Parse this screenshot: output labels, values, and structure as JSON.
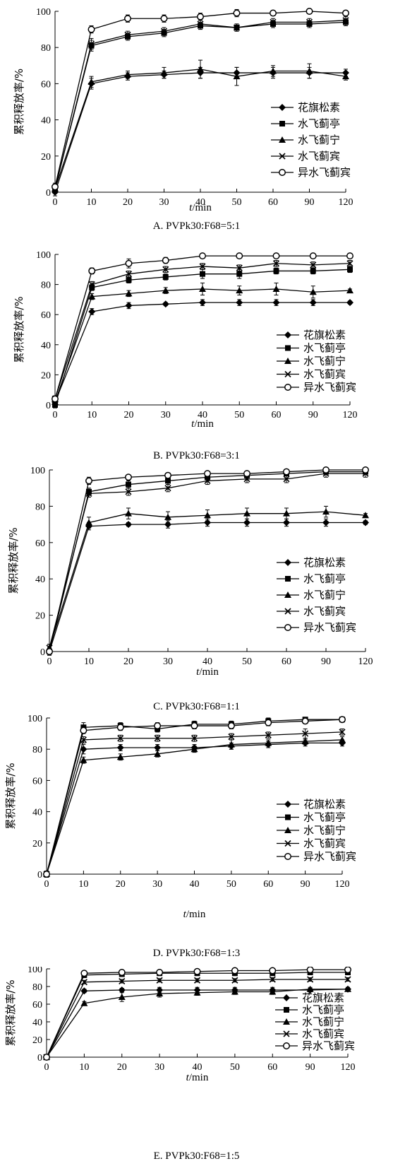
{
  "chart_data": [
    {
      "type": "line",
      "caption": "A. PVPk30:F68=5:1",
      "xlabel_italic": "t",
      "xlabel_unit": "/min",
      "ylabel": "累积释放率/%",
      "categories": [
        "0",
        "10",
        "20",
        "30",
        "40",
        "50",
        "60",
        "90",
        "120"
      ],
      "yticks": [
        0,
        20,
        40,
        60,
        80,
        100
      ],
      "ylim": [
        0,
        100
      ],
      "legend_position": "right",
      "series": [
        {
          "name": "花旗松素",
          "marker": "diamond",
          "values": [
            0,
            60,
            64,
            65,
            66,
            66,
            66,
            66,
            66
          ],
          "err": [
            2,
            3,
            2,
            2,
            3,
            3,
            3,
            3,
            2
          ]
        },
        {
          "name": "水飞蓟亭",
          "marker": "square",
          "values": [
            2,
            81,
            86,
            88,
            92,
            91,
            93,
            93,
            94
          ],
          "err": [
            2,
            3,
            2,
            2,
            2,
            2,
            2,
            2,
            2
          ]
        },
        {
          "name": "水飞蓟宁",
          "marker": "triangle",
          "values": [
            2,
            61,
            65,
            66,
            68,
            64,
            67,
            67,
            64
          ],
          "err": [
            2,
            3,
            2,
            3,
            5,
            5,
            3,
            4,
            2
          ]
        },
        {
          "name": "水飞蓟宾",
          "marker": "x",
          "values": [
            2,
            82,
            87,
            89,
            93,
            91,
            94,
            94,
            95
          ],
          "err": [
            2,
            3,
            2,
            2,
            2,
            2,
            2,
            2,
            2
          ]
        },
        {
          "name": "异水飞蓟宾",
          "marker": "circle",
          "values": [
            3,
            90,
            96,
            96,
            97,
            99,
            99,
            100,
            99
          ],
          "err": [
            2,
            2,
            2,
            2,
            2,
            2,
            1,
            1,
            1
          ]
        }
      ]
    },
    {
      "type": "line",
      "caption": "B. PVPk30:F68=3:1",
      "xlabel_italic": "t",
      "xlabel_unit": "/min",
      "ylabel": "累积释放率/%",
      "categories": [
        "0",
        "10",
        "20",
        "30",
        "40",
        "50",
        "60",
        "90",
        "120"
      ],
      "yticks": [
        0,
        20,
        40,
        60,
        80,
        100
      ],
      "ylim": [
        0,
        100
      ],
      "legend_position": "lower-right",
      "series": [
        {
          "name": "花旗松素",
          "marker": "diamond",
          "values": [
            2,
            62,
            66,
            67,
            68,
            68,
            68,
            68,
            68
          ],
          "err": [
            2,
            2,
            2,
            1,
            2,
            2,
            2,
            2,
            1
          ]
        },
        {
          "name": "水飞蓟亭",
          "marker": "square",
          "values": [
            0,
            78,
            83,
            85,
            87,
            87,
            89,
            89,
            90
          ],
          "err": [
            2,
            2,
            2,
            2,
            3,
            3,
            2,
            2,
            2
          ]
        },
        {
          "name": "水飞蓟宁",
          "marker": "triangle",
          "values": [
            2,
            72,
            74,
            76,
            77,
            76,
            77,
            75,
            76
          ],
          "err": [
            2,
            2,
            2,
            2,
            4,
            3,
            4,
            4,
            1
          ]
        },
        {
          "name": "水飞蓟宾",
          "marker": "x",
          "values": [
            4,
            80,
            87,
            90,
            92,
            91,
            94,
            93,
            94
          ],
          "err": [
            2,
            2,
            2,
            2,
            2,
            2,
            2,
            2,
            2
          ]
        },
        {
          "name": "异水飞蓟宾",
          "marker": "circle",
          "values": [
            4,
            89,
            94,
            96,
            99,
            99,
            99,
            99,
            99
          ],
          "err": [
            2,
            2,
            3,
            2,
            1,
            1,
            1,
            1,
            1
          ]
        }
      ]
    },
    {
      "type": "line",
      "caption": "C. PVPk30:F68=1:1",
      "xlabel_italic": "t",
      "xlabel_unit": "/min",
      "ylabel": "累积释放率/%",
      "categories": [
        "0",
        "10",
        "20",
        "30",
        "40",
        "50",
        "60",
        "90",
        "120"
      ],
      "yticks": [
        0,
        20,
        40,
        60,
        80,
        100
      ],
      "ylim": [
        0,
        100
      ],
      "legend_position": "lower-right",
      "series": [
        {
          "name": "花旗松素",
          "marker": "diamond",
          "values": [
            0,
            69,
            70,
            70,
            71,
            71,
            71,
            71,
            71
          ],
          "err": [
            2,
            2,
            1,
            2,
            2,
            2,
            2,
            2,
            1
          ]
        },
        {
          "name": "水飞蓟亭",
          "marker": "square",
          "values": [
            0,
            88,
            92,
            94,
            96,
            97,
            98,
            99,
            99
          ],
          "err": [
            2,
            2,
            2,
            2,
            2,
            2,
            1,
            1,
            1
          ]
        },
        {
          "name": "水飞蓟宁",
          "marker": "triangle",
          "values": [
            2,
            71,
            76,
            74,
            75,
            76,
            76,
            77,
            75
          ],
          "err": [
            2,
            3,
            3,
            3,
            3,
            3,
            3,
            3,
            1
          ]
        },
        {
          "name": "水飞蓟宾",
          "marker": "x",
          "values": [
            2,
            87,
            88,
            90,
            94,
            95,
            95,
            98,
            98
          ],
          "err": [
            2,
            2,
            2,
            2,
            2,
            2,
            2,
            2,
            2
          ]
        },
        {
          "name": "异水飞蓟宾",
          "marker": "circle",
          "values": [
            0,
            94,
            96,
            97,
            98,
            98,
            99,
            100,
            100
          ],
          "err": [
            2,
            2,
            1,
            1,
            1,
            1,
            1,
            1,
            1
          ]
        }
      ]
    },
    {
      "type": "line",
      "caption": "D. PVPk30:F68=1:3",
      "xlabel_italic": "t",
      "xlabel_unit": "/min",
      "ylabel": "累积释放率/%",
      "categories": [
        "0",
        "10",
        "20",
        "30",
        "40",
        "50",
        "60",
        "90",
        "120"
      ],
      "yticks": [
        0,
        20,
        40,
        60,
        80,
        100
      ],
      "ylim": [
        0,
        100
      ],
      "legend_position": "lower-right",
      "series": [
        {
          "name": "花旗松素",
          "marker": "diamond",
          "values": [
            0,
            80,
            81,
            81,
            81,
            82,
            83,
            84,
            84
          ],
          "err": [
            2,
            3,
            2,
            2,
            2,
            2,
            2,
            2,
            2
          ]
        },
        {
          "name": "水飞蓟亭",
          "marker": "square",
          "values": [
            0,
            94,
            95,
            93,
            96,
            96,
            98,
            99,
            99
          ],
          "err": [
            2,
            3,
            2,
            2,
            2,
            2,
            2,
            1,
            1
          ]
        },
        {
          "name": "水飞蓟宁",
          "marker": "triangle",
          "values": [
            0,
            73,
            75,
            77,
            80,
            83,
            84,
            85,
            86
          ],
          "err": [
            2,
            2,
            2,
            2,
            2,
            3,
            2,
            2,
            2
          ]
        },
        {
          "name": "水飞蓟宾",
          "marker": "x",
          "values": [
            0,
            86,
            87,
            87,
            87,
            88,
            89,
            90,
            91
          ],
          "err": [
            2,
            2,
            2,
            2,
            2,
            2,
            2,
            3,
            2
          ]
        },
        {
          "name": "异水飞蓟宾",
          "marker": "circle",
          "values": [
            0,
            92,
            94,
            95,
            95,
            95,
            97,
            98,
            99
          ],
          "err": [
            2,
            2,
            2,
            2,
            2,
            2,
            2,
            1,
            1
          ]
        }
      ]
    },
    {
      "type": "line",
      "caption": "E. PVPk30:F68=1:5",
      "xlabel_italic": "t",
      "xlabel_unit": "/min",
      "ylabel": "累积释放率/%",
      "categories": [
        "0",
        "10",
        "20",
        "30",
        "40",
        "50",
        "60",
        "90",
        "120"
      ],
      "yticks": [
        0,
        20,
        40,
        60,
        80,
        100
      ],
      "ylim": [
        0,
        100
      ],
      "legend_position": "lower-right",
      "series": [
        {
          "name": "花旗松素",
          "marker": "diamond",
          "values": [
            0,
            75,
            76,
            76,
            76,
            76,
            76,
            76,
            77
          ],
          "err": [
            1,
            2,
            2,
            3,
            3,
            3,
            3,
            2,
            2
          ]
        },
        {
          "name": "水飞蓟亭",
          "marker": "square",
          "values": [
            0,
            93,
            94,
            95,
            95,
            95,
            95,
            96,
            96
          ],
          "err": [
            1,
            3,
            2,
            2,
            2,
            2,
            2,
            2,
            2
          ]
        },
        {
          "name": "水飞蓟宁",
          "marker": "triangle",
          "values": [
            0,
            61,
            68,
            72,
            73,
            74,
            74,
            77,
            77
          ],
          "err": [
            1,
            2,
            5,
            4,
            3,
            3,
            3,
            2,
            2
          ]
        },
        {
          "name": "水飞蓟宾",
          "marker": "x",
          "values": [
            0,
            85,
            86,
            87,
            87,
            87,
            88,
            88,
            88
          ],
          "err": [
            1,
            2,
            2,
            2,
            2,
            2,
            2,
            2,
            2
          ]
        },
        {
          "name": "异水飞蓟宾",
          "marker": "circle",
          "values": [
            0,
            95,
            96,
            96,
            97,
            98,
            98,
            99,
            99
          ],
          "err": [
            1,
            2,
            2,
            2,
            2,
            1,
            1,
            1,
            1
          ]
        }
      ]
    }
  ]
}
